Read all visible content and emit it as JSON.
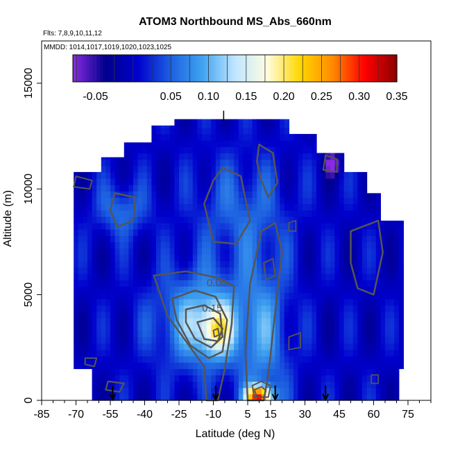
{
  "chart_data": {
    "type": "heatmap",
    "title": "ATOM3 Northbound MS_Abs_660nm",
    "subtitle_lines": [
      "Flts: 7,8,9,10,11,12",
      "MMDD: 1014,1017,1019,1020,1023,1025"
    ],
    "xlabel": "Latitude (deg N)",
    "ylabel": "Altitude (m)",
    "xlim": [
      -85,
      85
    ],
    "ylim": [
      0,
      17000
    ],
    "x_ticks": [
      -85,
      -70,
      -55,
      -40,
      -25,
      -10,
      5,
      15,
      30,
      45,
      60,
      75
    ],
    "y_ticks": [
      0,
      5000,
      10000,
      15000
    ],
    "colorbar": {
      "range": [
        -0.08,
        0.35
      ],
      "tick_values": [
        -0.05,
        0.05,
        0.1,
        0.15,
        0.2,
        0.25,
        0.3,
        0.35
      ],
      "tick_labels": [
        "-0.05",
        "0.05",
        "0.10",
        "0.15",
        "0.20",
        "0.25",
        "0.30",
        "0.35"
      ],
      "colors": [
        "#8a2be2",
        "#00008b",
        "#0000cd",
        "#1c5fe0",
        "#3fa3f0",
        "#bfe6ff",
        "#fffde0",
        "#ffd700",
        "#ff8c00",
        "#ff0000",
        "#8b0000"
      ]
    },
    "grid": false,
    "contour_labels": [
      "0.05",
      "0.15"
    ],
    "arrow_latitudes": [
      -54,
      -9,
      17,
      39
    ],
    "field_regions": [
      {
        "region": "background",
        "value": 0.0
      },
      {
        "region": "upper-west",
        "lat": [
          -60,
          -40
        ],
        "alt": [
          8500,
          9500
        ],
        "value": 0.08
      },
      {
        "region": "upper-mid",
        "lat": [
          -15,
          20
        ],
        "alt": [
          6500,
          11000
        ],
        "value": 0.05
      },
      {
        "region": "center-west-plume",
        "lat": [
          -35,
          0
        ],
        "alt": [
          1500,
          5500
        ],
        "value": 0.12
      },
      {
        "region": "peak",
        "lat": [
          -13,
          -5
        ],
        "alt": [
          2500,
          4000
        ],
        "value": 0.22
      },
      {
        "region": "center-east-column",
        "lat": [
          2,
          22
        ],
        "alt": [
          0,
          8000
        ],
        "value": 0.07
      },
      {
        "region": "surface-max",
        "lat": [
          5,
          15
        ],
        "alt": [
          0,
          600
        ],
        "value": 0.33
      },
      {
        "region": "negative-spot",
        "lat": [
          40,
          45
        ],
        "alt": [
          10800,
          11500
        ],
        "value": -0.07
      }
    ]
  }
}
